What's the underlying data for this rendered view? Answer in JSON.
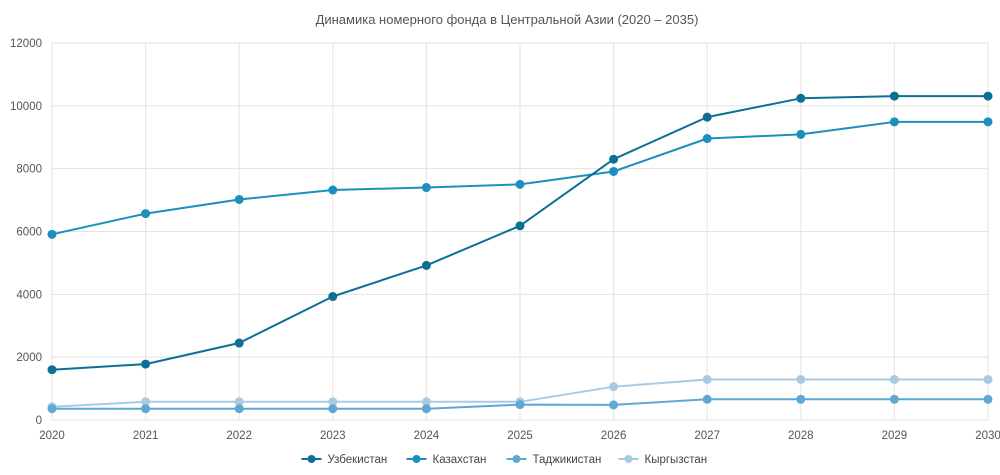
{
  "chart_data": {
    "type": "line",
    "title": "Динамика номерного фонда в Центральной Азии (2020 – 2035)",
    "xlabel": "",
    "ylabel": "",
    "x": [
      "2020",
      "2021",
      "2022",
      "2023",
      "2024",
      "2025",
      "2026",
      "2027",
      "2028",
      "2029",
      "2030"
    ],
    "ylim": [
      0,
      12000
    ],
    "yticks": [
      "0",
      "2000",
      "4000",
      "6000",
      "8000",
      "10000",
      "12000"
    ],
    "grid": true,
    "legend_position": "bottom",
    "series": [
      {
        "name": "Узбекистан",
        "color": "#0d6f95",
        "values": [
          1600,
          1780,
          2450,
          3930,
          4920,
          6180,
          8300,
          9640,
          10240,
          10310,
          10310
        ]
      },
      {
        "name": "Казахстан",
        "color": "#1b8fbd",
        "values": [
          5910,
          6570,
          7020,
          7320,
          7400,
          7500,
          7910,
          8960,
          9090,
          9490,
          9490
        ]
      },
      {
        "name": "Таджикистан",
        "color": "#5fa8d3",
        "values": [
          360,
          360,
          360,
          360,
          360,
          490,
          480,
          660,
          660,
          660,
          660
        ]
      },
      {
        "name": "Кыргызстан",
        "color": "#a9cbe2",
        "values": [
          420,
          580,
          580,
          580,
          580,
          580,
          1060,
          1290,
          1290,
          1290,
          1290
        ]
      }
    ]
  }
}
